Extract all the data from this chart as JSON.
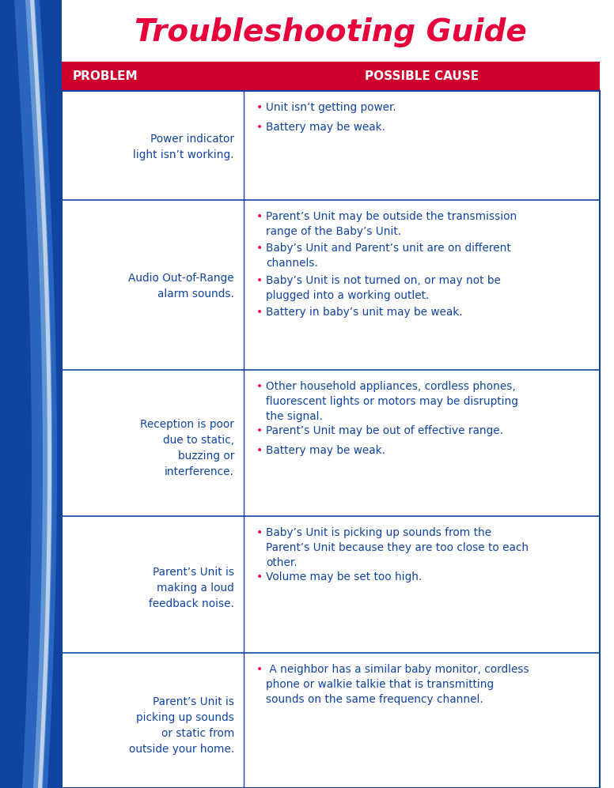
{
  "title": "Troubleshooting Guide",
  "title_color": "#E8003D",
  "header_bg_color": "#D0002E",
  "header_problem": "PROBLEM",
  "header_cause": "POSSIBLE CAUSE",
  "header_text_color": "#FFFFFF",
  "sidebar_dark": "#1044A0",
  "sidebar_mid": "#2E6BC4",
  "sidebar_light": "#7BA8DC",
  "sidebar_white": "#C8D8EE",
  "line_color": "#1044A0",
  "problem_text_color": "#1044A0",
  "cause_text_color": "#1044A0",
  "bullet_color": "#E8003D",
  "bg_color": "#FFFFFF",
  "rows": [
    {
      "problem": "Power indicator\nlight isn’t working.",
      "causes": [
        "Unit isn’t getting power.",
        "Battery may be weak."
      ]
    },
    {
      "problem": "Audio Out-of-Range\nalarm sounds.",
      "causes": [
        "Parent’s Unit may be outside the transmission\nrange of the Baby’s Unit.",
        "Baby’s Unit and Parent’s unit are on different\nchannels.",
        "Baby’s Unit is not turned on, or may not be\nplugged into a working outlet.",
        "Battery in baby’s unit may be weak."
      ]
    },
    {
      "problem": "Reception is poor\ndue to static,\nbuzzing or\ninterference.",
      "causes": [
        "Other household appliances, cordless phones,\nfluorescent lights or motors may be disrupting\nthe signal.",
        "Parent’s Unit may be out of effective range.",
        "Battery may be weak."
      ]
    },
    {
      "problem": "Parent’s Unit is\nmaking a loud\nfeedback noise.",
      "causes": [
        "Baby’s Unit is picking up sounds from the\nParent’s Unit because they are too close to each\nother.",
        "Volume may be set too high."
      ]
    },
    {
      "problem": "Parent’s Unit is\npicking up sounds\nor static from\noutside your home.",
      "causes": [
        " A neighbor has a similar baby monitor, cordless\nphone or walkie talkie that is transmitting\nsounds on the same frequency channel."
      ]
    }
  ],
  "fig_width": 7.76,
  "fig_height": 9.97,
  "dpi": 100
}
